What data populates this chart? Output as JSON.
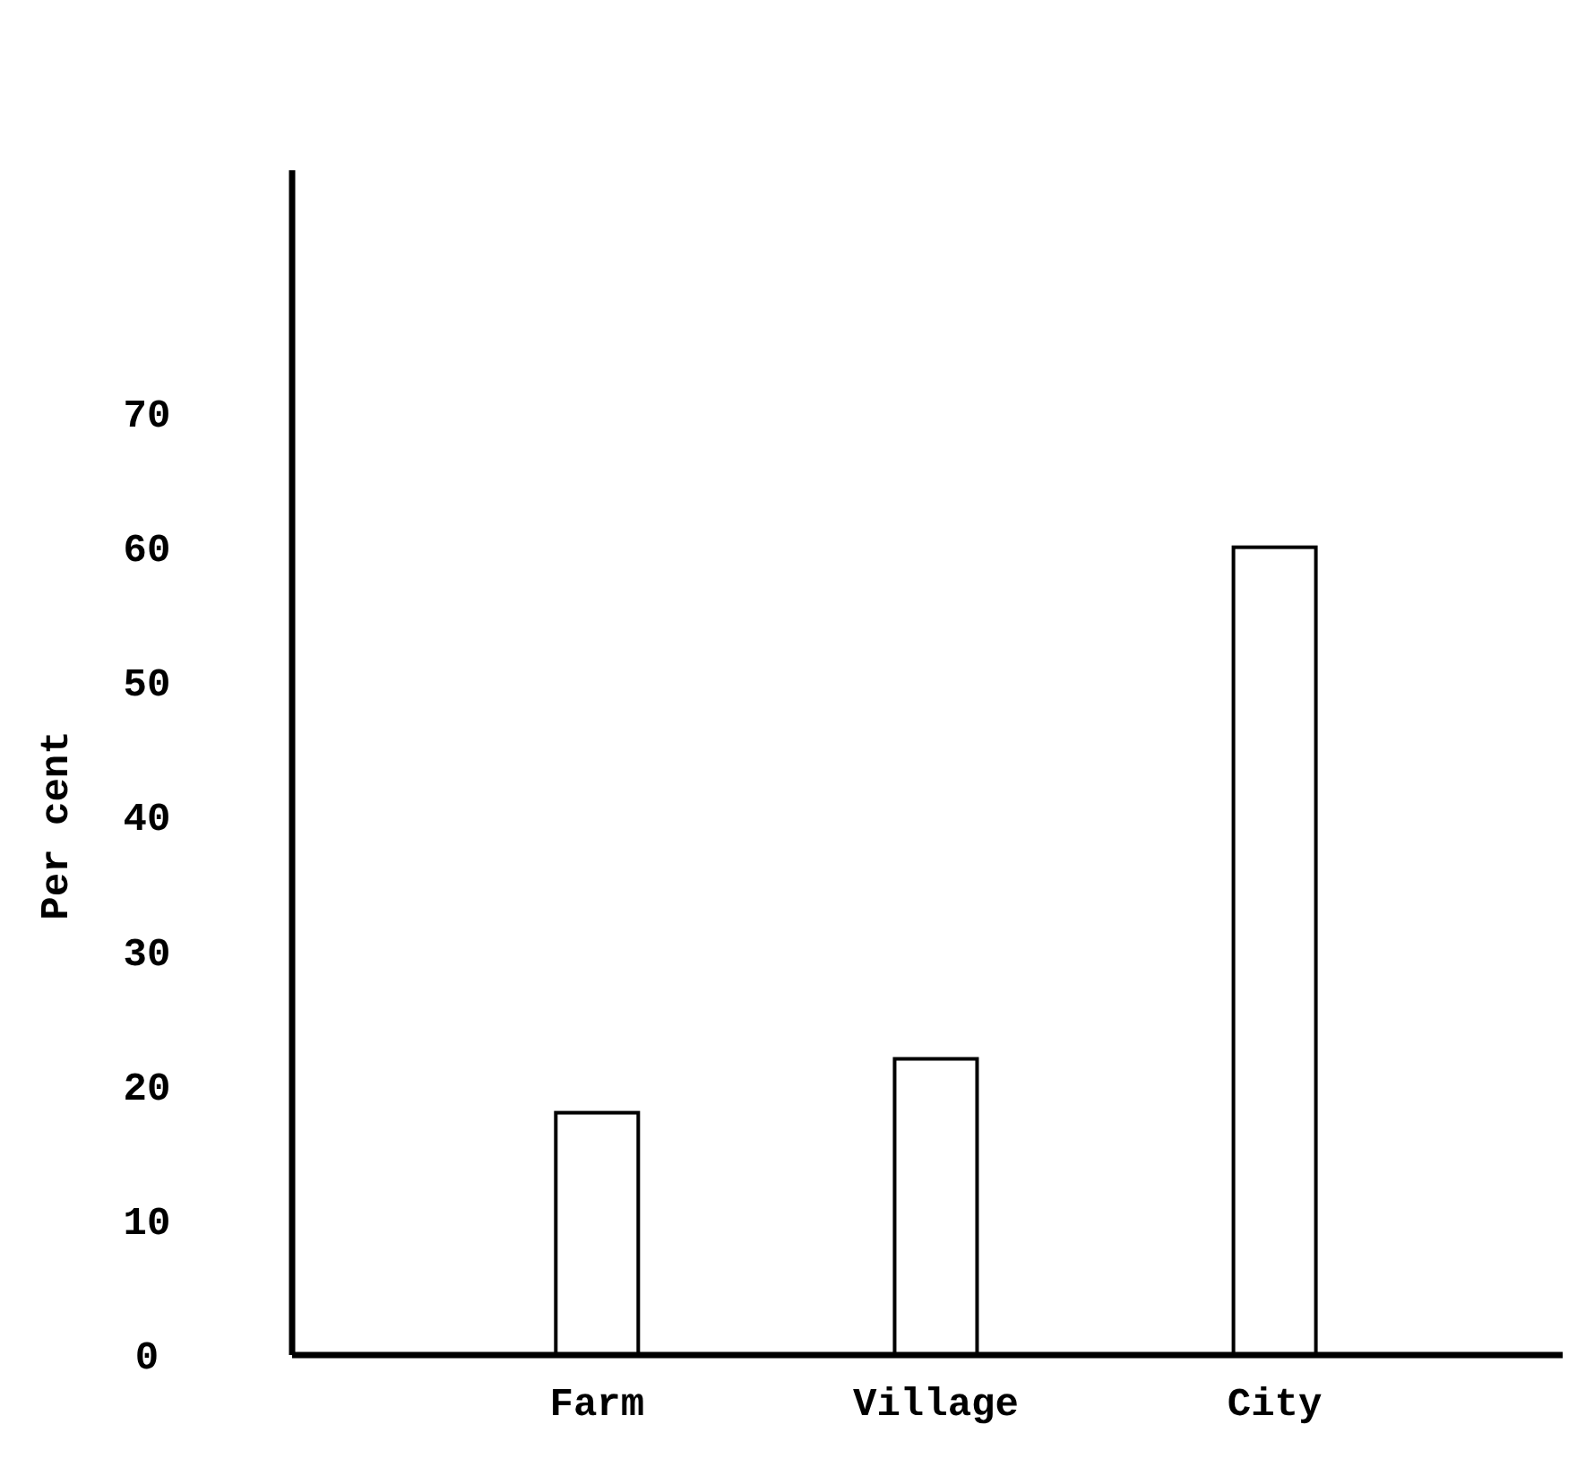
{
  "chart_data": {
    "type": "bar",
    "ylabel": "Per cent",
    "categories": [
      "Farm",
      "Village",
      "City"
    ],
    "values": [
      18,
      22,
      60
    ],
    "color": "#ffffff",
    "ylim": [
      0,
      88
    ],
    "yticks": [
      0,
      10,
      20,
      30,
      40,
      50,
      60,
      70
    ],
    "grid": false
  }
}
